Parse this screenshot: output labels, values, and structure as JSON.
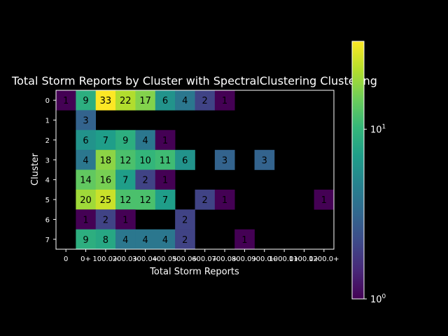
{
  "chart_data": {
    "type": "heatmap",
    "title": "Total Storm Reports by Cluster with SpectralClustering Clustering",
    "xlabel": "Total Storm Reports",
    "ylabel": "Cluster",
    "x_categories": [
      "0",
      "0+",
      "100.0+",
      "200.0+",
      "300.0+",
      "400.0+",
      "500.0+",
      "600.0+",
      "700.0+",
      "800.0+",
      "900.0+",
      "1000.0+",
      "1100.0+",
      "1200.0+"
    ],
    "y_categories": [
      "0",
      "1",
      "2",
      "3",
      "4",
      "5",
      "6",
      "7"
    ],
    "values": [
      [
        1,
        9,
        33,
        22,
        17,
        6,
        4,
        2,
        1,
        null,
        null,
        null,
        null,
        null
      ],
      [
        null,
        3,
        null,
        null,
        null,
        null,
        null,
        null,
        null,
        null,
        null,
        null,
        null,
        null
      ],
      [
        null,
        6,
        7,
        9,
        4,
        1,
        null,
        null,
        null,
        null,
        null,
        null,
        null,
        null
      ],
      [
        null,
        4,
        18,
        12,
        10,
        11,
        6,
        null,
        3,
        null,
        3,
        null,
        null,
        null
      ],
      [
        null,
        14,
        16,
        7,
        2,
        1,
        null,
        null,
        null,
        null,
        null,
        null,
        null,
        null
      ],
      [
        null,
        20,
        25,
        12,
        12,
        7,
        null,
        2,
        1,
        null,
        null,
        null,
        null,
        1
      ],
      [
        null,
        1,
        2,
        1,
        null,
        null,
        2,
        null,
        null,
        null,
        null,
        null,
        null,
        null
      ],
      [
        null,
        9,
        8,
        4,
        4,
        4,
        2,
        null,
        null,
        1,
        null,
        null,
        null,
        null
      ]
    ],
    "colorscale": "viridis",
    "color_scale_type": "log",
    "color_range": [
      1,
      33
    ],
    "colorbar_ticks": [
      {
        "value": 1,
        "base": "10",
        "exp": "0"
      },
      {
        "value": 10,
        "base": "10",
        "exp": "1"
      }
    ],
    "grid": false,
    "background": "#000000",
    "foreground": "#ffffff"
  }
}
